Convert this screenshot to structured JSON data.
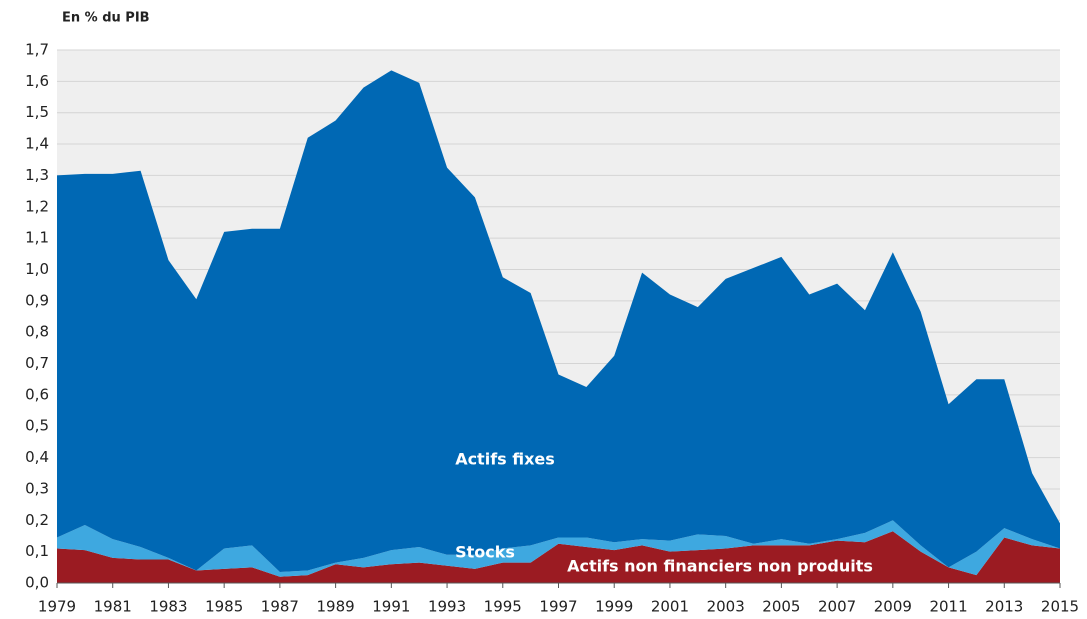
{
  "chart_data": {
    "type": "stacked_area",
    "y_label": "En % du PIB",
    "x": [
      1979,
      1980,
      1981,
      1982,
      1983,
      1984,
      1985,
      1986,
      1987,
      1988,
      1989,
      1990,
      1991,
      1992,
      1993,
      1994,
      1995,
      1996,
      1997,
      1998,
      1999,
      2000,
      2001,
      2002,
      2003,
      2004,
      2005,
      2006,
      2007,
      2008,
      2009,
      2010,
      2011,
      2012,
      2013,
      2014,
      2015
    ],
    "xlim": [
      1979,
      2015
    ],
    "xticks": [
      1979,
      1981,
      1983,
      1985,
      1987,
      1989,
      1991,
      1993,
      1995,
      1997,
      1999,
      2001,
      2003,
      2005,
      2007,
      2009,
      2011,
      2013,
      2015
    ],
    "ylim": [
      0,
      1.7
    ],
    "yticks": [
      {
        "value": 0,
        "label": "0,0"
      },
      {
        "value": 0.1,
        "label": "0,1"
      },
      {
        "value": 0.2,
        "label": "0,2"
      },
      {
        "value": 0.3,
        "label": "0,3"
      },
      {
        "value": 0.4,
        "label": "0,4"
      },
      {
        "value": 0.5,
        "label": "0,5"
      },
      {
        "value": 0.6,
        "label": "0,6"
      },
      {
        "value": 0.7,
        "label": "0,7"
      },
      {
        "value": 0.8,
        "label": "0,8"
      },
      {
        "value": 0.9,
        "label": "0,9"
      },
      {
        "value": 1.0,
        "label": "1,0"
      },
      {
        "value": 1.1,
        "label": "1,1"
      },
      {
        "value": 1.2,
        "label": "1,2"
      },
      {
        "value": 1.3,
        "label": "1,3"
      },
      {
        "value": 1.4,
        "label": "1,4"
      },
      {
        "value": 1.5,
        "label": "1,5"
      },
      {
        "value": 1.6,
        "label": "1,6"
      },
      {
        "value": 1.7,
        "label": "1,7"
      }
    ],
    "grid": true,
    "series": [
      {
        "name": "Actifs non financiers non produits",
        "color": "#9b1b22",
        "values": [
          0.11,
          0.105,
          0.08,
          0.075,
          0.075,
          0.04,
          0.045,
          0.05,
          0.02,
          0.025,
          0.06,
          0.05,
          0.06,
          0.065,
          0.055,
          0.045,
          0.065,
          0.065,
          0.125,
          0.115,
          0.105,
          0.12,
          0.1,
          0.105,
          0.11,
          0.12,
          0.12,
          0.12,
          0.135,
          0.13,
          0.165,
          0.1,
          0.05,
          0.025,
          0.145,
          0.12,
          0.11
        ]
      },
      {
        "name": "Stocks",
        "color": "#3ea8e0",
        "values": [
          0.035,
          0.08,
          0.06,
          0.04,
          0.005,
          0,
          0.065,
          0.07,
          0.015,
          0.015,
          0.005,
          0.03,
          0.045,
          0.05,
          0.035,
          0.045,
          0.045,
          0.055,
          0.02,
          0.03,
          0.025,
          0.02,
          0.035,
          0.05,
          0.04,
          0.005,
          0.02,
          0.005,
          0.005,
          0.03,
          0.035,
          0.02,
          0,
          0.075,
          0.03,
          0.02,
          0
        ]
      },
      {
        "name": "Actifs fixes",
        "color": "#0068b4",
        "values": [
          1.155,
          1.12,
          1.165,
          1.2,
          0.95,
          0.865,
          1.01,
          1.01,
          1.095,
          1.38,
          1.41,
          1.5,
          1.53,
          1.48,
          1.235,
          1.14,
          0.865,
          0.805,
          0.52,
          0.48,
          0.595,
          0.85,
          0.785,
          0.725,
          0.82,
          0.88,
          0.9,
          0.795,
          0.815,
          0.71,
          0.855,
          0.745,
          0.52,
          0.55,
          0.475,
          0.21,
          0.08
        ]
      }
    ]
  }
}
